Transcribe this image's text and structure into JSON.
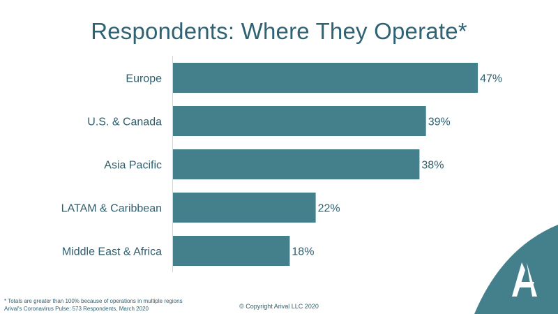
{
  "title": "Respondents: Where They Operate*",
  "chart_data": {
    "type": "bar",
    "orientation": "horizontal",
    "categories": [
      "Europe",
      "U.S. & Canada",
      "Asia Pacific",
      "LATAM & Caribbean",
      "Middle East & Africa"
    ],
    "values": [
      47,
      39,
      38,
      22,
      18
    ],
    "value_labels": [
      "47%",
      "39%",
      "38%",
      "22%",
      "18%"
    ],
    "unit": "%",
    "title": "Respondents: Where They Operate*",
    "xlabel": "",
    "ylabel": "",
    "xlim": [
      0,
      50
    ],
    "grid": false,
    "bar_color": "#44808c"
  },
  "footnotes": {
    "line1": "* Totals are greater than 100% because of operations in multiple regions",
    "line2": "Arival's Coronavirus Pulse: 573 Respondents, March 2020"
  },
  "copyright": "© Copyright Arival LLC 2020",
  "colors": {
    "accent": "#44808c",
    "text": "#2f6272"
  },
  "logo": {
    "icon": "arival-logo-icon",
    "text": "A"
  }
}
